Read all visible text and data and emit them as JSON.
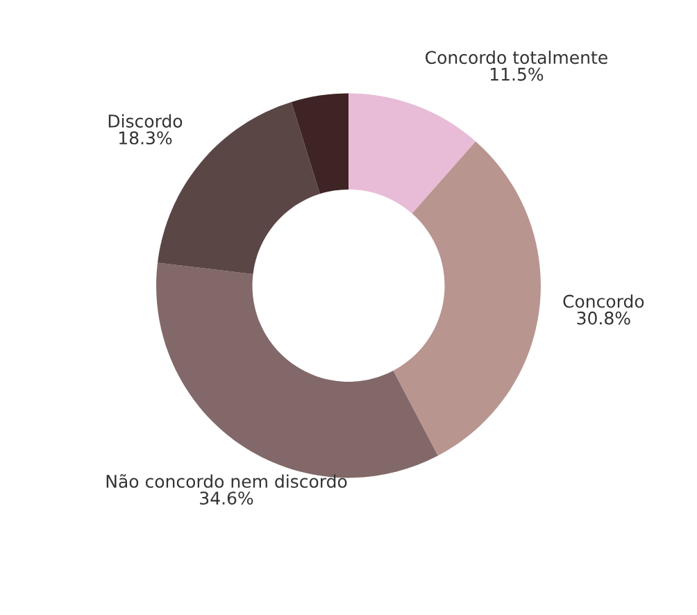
{
  "chart_data": {
    "type": "donut",
    "categories": [
      "Concordo totalmente",
      "Concordo",
      "Não concordo nem discordo",
      "Discordo",
      null
    ],
    "values": [
      11.5,
      30.8,
      34.6,
      18.3,
      4.8
    ],
    "value_labels": [
      "11.5%",
      "30.8%",
      "34.6%",
      "18.3%",
      null
    ],
    "colors": [
      "#e8bcd6",
      "#b99590",
      "#826868",
      "#5a4645",
      "#3e2424"
    ],
    "legend": false
  }
}
